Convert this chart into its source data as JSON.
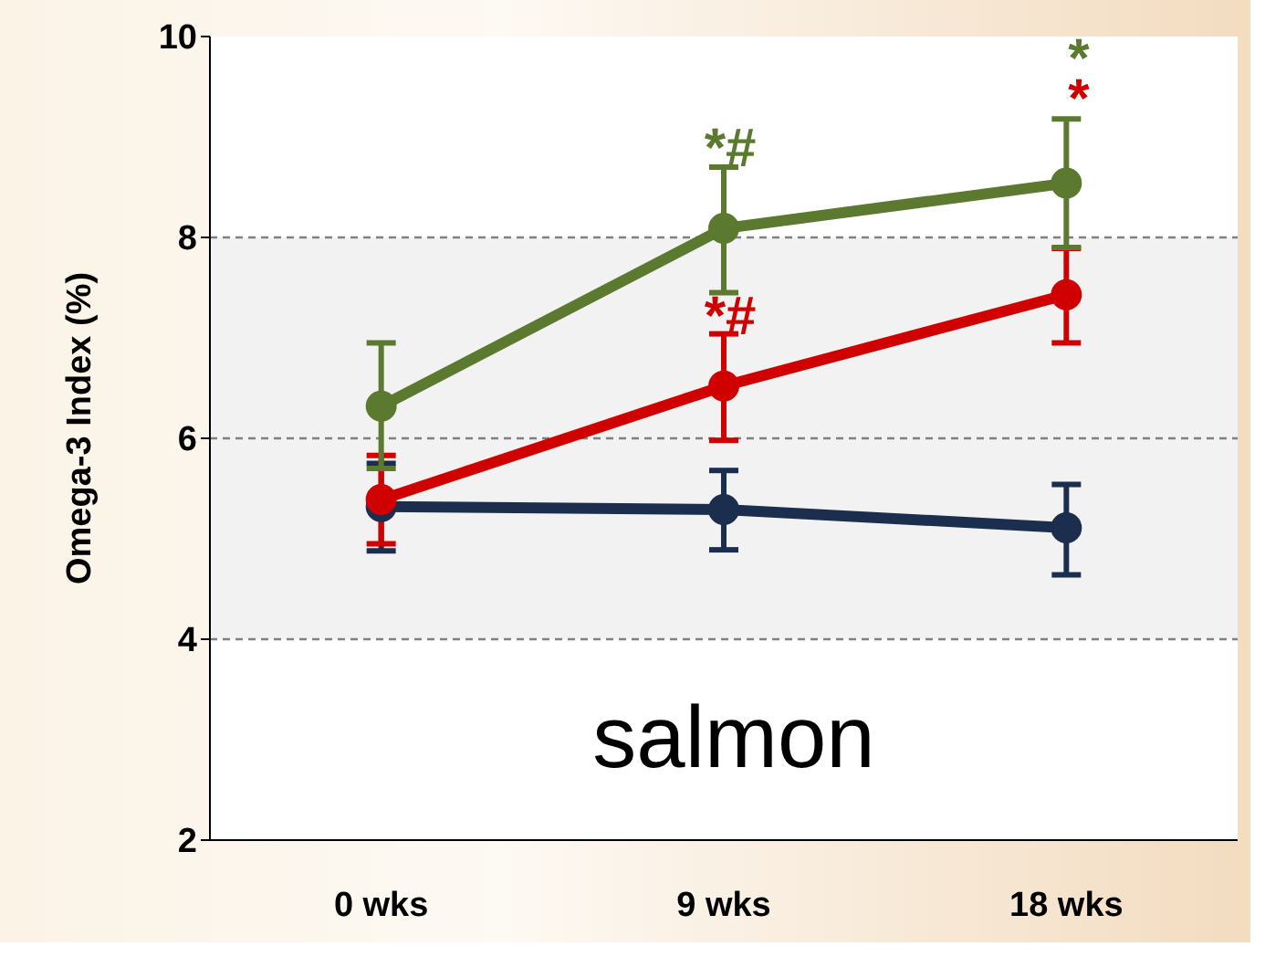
{
  "chart_data": {
    "type": "line",
    "ylabel": "Omega-3 Index (%)",
    "categories": [
      "0 wks",
      "9 wks",
      "18 wks"
    ],
    "series": [
      {
        "color": "#5b7a2f",
        "values": [
          6.32,
          8.09,
          8.54
        ],
        "errors": [
          [
            5.7,
            6.95
          ],
          [
            7.45,
            8.7
          ],
          [
            7.9,
            9.18
          ]
        ]
      },
      {
        "color": "#d00000",
        "values": [
          5.39,
          6.52,
          7.43
        ],
        "errors": [
          [
            4.95,
            5.83
          ],
          [
            5.98,
            7.04
          ],
          [
            6.95,
            7.89
          ]
        ]
      },
      {
        "color": "#1c2e4e",
        "values": [
          5.32,
          5.29,
          5.11
        ],
        "errors": [
          [
            4.88,
            5.75
          ],
          [
            4.89,
            5.68
          ],
          [
            4.64,
            5.54
          ]
        ]
      }
    ],
    "ylim": [
      2,
      10
    ],
    "yticks": [
      2,
      4,
      6,
      8,
      10
    ],
    "marker": "circle",
    "line_style": "solid",
    "legend": false,
    "bands": [
      {
        "axis": "y",
        "from": 4,
        "to": 8,
        "color": "#f2f2f2"
      }
    ],
    "ref_lines": [
      {
        "axis": "y",
        "value": 4,
        "line_style": "dashed",
        "color": "#808080"
      },
      {
        "axis": "y",
        "value": 6,
        "line_style": "dashed",
        "color": "#808080"
      },
      {
        "axis": "y",
        "value": 8,
        "line_style": "dashed",
        "color": "#808080"
      }
    ],
    "annotations": [
      "*#",
      "*",
      "*#",
      "*",
      "salmon"
    ]
  }
}
